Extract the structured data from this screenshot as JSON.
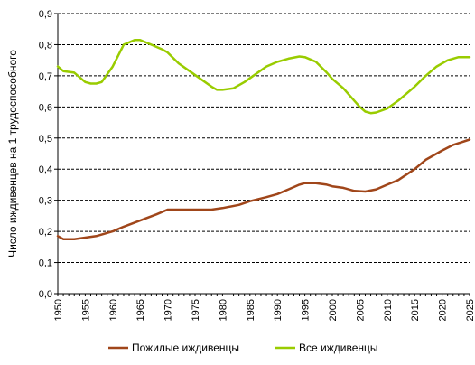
{
  "chart_data": {
    "type": "line",
    "ylabel": "Число иждивенцев на 1 трудоспособного",
    "xlabel": "",
    "title": "",
    "ylim": [
      0,
      0.9
    ],
    "xlim": [
      1950,
      2025
    ],
    "y_ticks": [
      "0,0",
      "0,1",
      "0,2",
      "0,3",
      "0,4",
      "0,5",
      "0,6",
      "0,7",
      "0,8",
      "0,9"
    ],
    "x_ticks": [
      "1950",
      "1955",
      "1960",
      "1965",
      "1970",
      "1975",
      "1980",
      "1985",
      "1990",
      "1995",
      "2000",
      "2005",
      "2010",
      "2015",
      "2020",
      "2025"
    ],
    "grid": "horizontal dashed",
    "legend_position": "bottom",
    "series": [
      {
        "name": "Пожилые иждивенцы",
        "color": "#a0461a",
        "points": [
          [
            1950,
            0.185
          ],
          [
            1951,
            0.175
          ],
          [
            1953,
            0.175
          ],
          [
            1955,
            0.18
          ],
          [
            1957,
            0.185
          ],
          [
            1960,
            0.2
          ],
          [
            1962,
            0.215
          ],
          [
            1965,
            0.235
          ],
          [
            1968,
            0.255
          ],
          [
            1970,
            0.27
          ],
          [
            1972,
            0.27
          ],
          [
            1975,
            0.27
          ],
          [
            1978,
            0.27
          ],
          [
            1980,
            0.275
          ],
          [
            1983,
            0.285
          ],
          [
            1985,
            0.297
          ],
          [
            1988,
            0.31
          ],
          [
            1990,
            0.32
          ],
          [
            1992,
            0.335
          ],
          [
            1994,
            0.35
          ],
          [
            1995,
            0.355
          ],
          [
            1997,
            0.355
          ],
          [
            1999,
            0.35
          ],
          [
            2000,
            0.345
          ],
          [
            2002,
            0.34
          ],
          [
            2004,
            0.33
          ],
          [
            2006,
            0.328
          ],
          [
            2008,
            0.335
          ],
          [
            2010,
            0.35
          ],
          [
            2012,
            0.365
          ],
          [
            2015,
            0.4
          ],
          [
            2017,
            0.43
          ],
          [
            2020,
            0.46
          ],
          [
            2022,
            0.478
          ],
          [
            2025,
            0.495
          ]
        ]
      },
      {
        "name": "Все иждивенцы",
        "color": "#99cc00",
        "points": [
          [
            1950,
            0.73
          ],
          [
            1951,
            0.715
          ],
          [
            1953,
            0.71
          ],
          [
            1955,
            0.68
          ],
          [
            1956,
            0.675
          ],
          [
            1957,
            0.675
          ],
          [
            1958,
            0.68
          ],
          [
            1960,
            0.73
          ],
          [
            1962,
            0.8
          ],
          [
            1964,
            0.815
          ],
          [
            1965,
            0.815
          ],
          [
            1967,
            0.8
          ],
          [
            1969,
            0.785
          ],
          [
            1970,
            0.775
          ],
          [
            1972,
            0.74
          ],
          [
            1974,
            0.715
          ],
          [
            1976,
            0.69
          ],
          [
            1978,
            0.665
          ],
          [
            1979,
            0.655
          ],
          [
            1980,
            0.655
          ],
          [
            1982,
            0.66
          ],
          [
            1984,
            0.68
          ],
          [
            1986,
            0.705
          ],
          [
            1988,
            0.73
          ],
          [
            1990,
            0.745
          ],
          [
            1992,
            0.755
          ],
          [
            1994,
            0.762
          ],
          [
            1995,
            0.76
          ],
          [
            1997,
            0.745
          ],
          [
            1999,
            0.71
          ],
          [
            2000,
            0.69
          ],
          [
            2002,
            0.66
          ],
          [
            2004,
            0.62
          ],
          [
            2005,
            0.6
          ],
          [
            2006,
            0.585
          ],
          [
            2007,
            0.58
          ],
          [
            2008,
            0.582
          ],
          [
            2010,
            0.595
          ],
          [
            2012,
            0.62
          ],
          [
            2015,
            0.665
          ],
          [
            2017,
            0.7
          ],
          [
            2019,
            0.73
          ],
          [
            2021,
            0.75
          ],
          [
            2022,
            0.755
          ],
          [
            2023,
            0.76
          ],
          [
            2025,
            0.76
          ]
        ]
      }
    ]
  }
}
